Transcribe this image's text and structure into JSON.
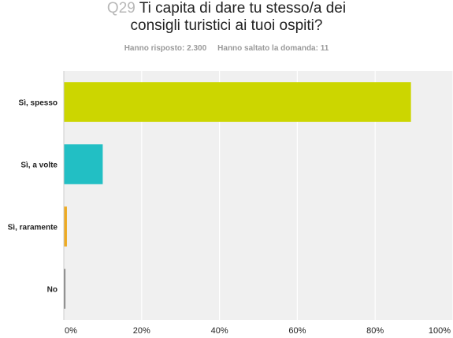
{
  "header": {
    "qnum": "Q29",
    "title_line1": "Ti capita di dare tu stesso/a dei",
    "title_line2": "consigli turistici ai tuoi ospiti?",
    "answered": "Hanno risposto: 2.300",
    "skipped": "Hanno saltato la domanda: 11"
  },
  "chart_data": {
    "type": "bar",
    "orientation": "horizontal",
    "categories": [
      "Sì, spesso",
      "Sì, a volte",
      "Sì, raramente",
      "No"
    ],
    "values": [
      89.2,
      10.0,
      0.8,
      0.3
    ],
    "colors": [
      "#ccd600",
      "#22bfc4",
      "#eeaa22",
      "#777777"
    ],
    "xlim": [
      0,
      100
    ],
    "xticks": [
      "0%",
      "20%",
      "40%",
      "60%",
      "80%",
      "100%"
    ],
    "grid": true,
    "background": "#f0f0f0"
  }
}
